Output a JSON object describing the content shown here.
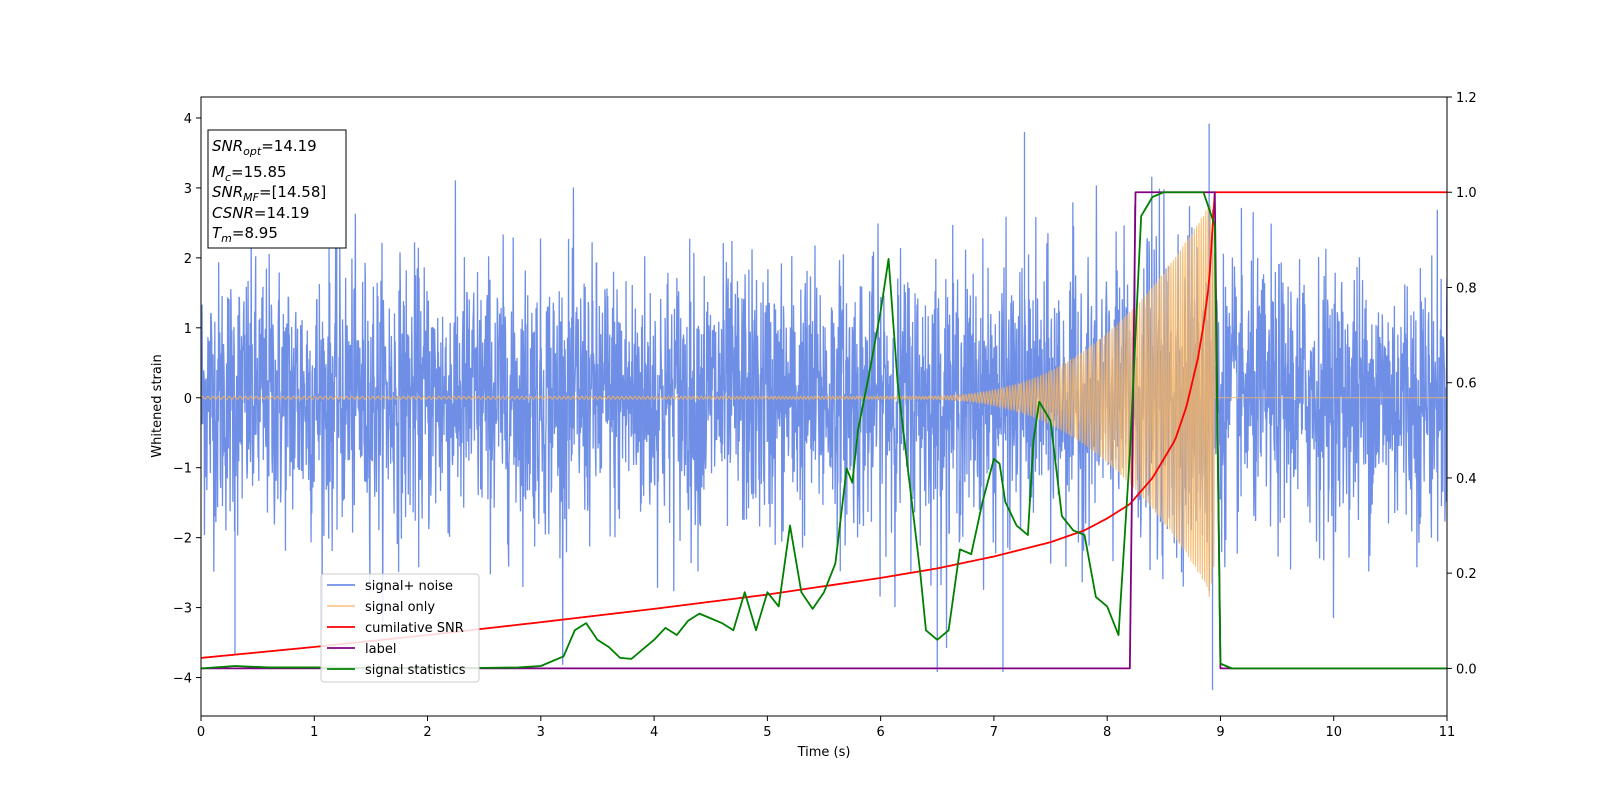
{
  "chart_data": {
    "type": "line",
    "xlabel": "Time (s)",
    "ylabel": "Whitened strain",
    "xlim": [
      0,
      11
    ],
    "ylim": [
      -4.55,
      4.3
    ],
    "y2lim": [
      -0.1,
      1.2
    ],
    "xticks": [
      0,
      1,
      2,
      3,
      4,
      5,
      6,
      7,
      8,
      9,
      10,
      11
    ],
    "yticks": [
      -4,
      -3,
      -2,
      -1,
      0,
      1,
      2,
      3,
      4
    ],
    "y2ticks": [
      "0.0",
      "0.2",
      "0.4",
      "0.6",
      "0.8",
      "1.0",
      "1.2"
    ],
    "grid": false,
    "legend_position": "lower-left",
    "annotations": [
      {
        "name": "snr-opt",
        "base": "SNR",
        "sub": "opt",
        "value": "=14.19"
      },
      {
        "name": "mc",
        "base": "M",
        "sub": "c",
        "value": "=15.85"
      },
      {
        "name": "snr-mf",
        "base": "SNR",
        "sub": "MF",
        "value": "=[14.58]"
      },
      {
        "name": "csnr",
        "base": "CSNR",
        "sub": "",
        "value": "=14.19"
      },
      {
        "name": "tm",
        "base": "T",
        "sub": "m",
        "value": "=8.95"
      }
    ],
    "series": [
      {
        "name": "signal+ noise",
        "color": "#6f8fe6",
        "axis": "left",
        "description_values": {
          "noise_std": 1.0,
          "t_start": 0,
          "t_end": 11,
          "spike_max": 3.92,
          "spike_min": -4.18
        }
      },
      {
        "name": "signal only",
        "color": "#f5b461",
        "axis": "left",
        "chirp": {
          "t_coalescence": 8.95,
          "amp_start": 0.02,
          "amp_peak": 2.9,
          "freq_start": 21,
          "freq_end": 60
        }
      },
      {
        "name": "cumilative SNR",
        "color": "#ff0000",
        "axis": "right",
        "x": [
          0,
          1,
          2,
          3,
          4,
          5,
          6,
          6.5,
          7,
          7.5,
          7.8,
          8.0,
          8.2,
          8.4,
          8.6,
          8.7,
          8.8,
          8.85,
          8.9,
          8.95,
          9,
          11
        ],
        "y": [
          0.022,
          0.045,
          0.07,
          0.097,
          0.125,
          0.155,
          0.19,
          0.21,
          0.235,
          0.265,
          0.29,
          0.315,
          0.345,
          0.4,
          0.48,
          0.55,
          0.65,
          0.72,
          0.81,
          1.0,
          1.0,
          1.0
        ]
      },
      {
        "name": "label",
        "color": "#800080",
        "axis": "right",
        "x": [
          0,
          8.2,
          8.25,
          8.95,
          9.0,
          11
        ],
        "y": [
          0,
          0,
          1,
          1,
          0,
          0
        ]
      },
      {
        "name": "signal statistics",
        "color": "#008000",
        "axis": "right",
        "x": [
          0,
          0.3,
          0.6,
          1.0,
          1.5,
          2.0,
          2.5,
          2.8,
          3.0,
          3.2,
          3.3,
          3.4,
          3.5,
          3.6,
          3.7,
          3.8,
          3.9,
          4.0,
          4.1,
          4.2,
          4.3,
          4.4,
          4.5,
          4.6,
          4.7,
          4.8,
          4.9,
          5.0,
          5.1,
          5.2,
          5.3,
          5.4,
          5.5,
          5.6,
          5.7,
          5.75,
          5.8,
          5.9,
          6.0,
          6.07,
          6.15,
          6.25,
          6.35,
          6.4,
          6.5,
          6.6,
          6.7,
          6.8,
          6.9,
          7.0,
          7.05,
          7.1,
          7.2,
          7.3,
          7.35,
          7.4,
          7.5,
          7.6,
          7.7,
          7.8,
          7.9,
          8.0,
          8.1,
          8.2,
          8.3,
          8.4,
          8.5,
          8.6,
          8.7,
          8.85,
          8.95,
          9.0,
          9.1,
          9.5,
          10,
          11
        ],
        "y": [
          0.0,
          0.005,
          0.002,
          0.002,
          0.001,
          0.001,
          0.001,
          0.002,
          0.005,
          0.025,
          0.08,
          0.095,
          0.06,
          0.045,
          0.022,
          0.02,
          0.04,
          0.06,
          0.085,
          0.07,
          0.1,
          0.115,
          0.105,
          0.095,
          0.08,
          0.16,
          0.08,
          0.16,
          0.13,
          0.3,
          0.16,
          0.125,
          0.16,
          0.22,
          0.42,
          0.39,
          0.5,
          0.62,
          0.75,
          0.86,
          0.6,
          0.4,
          0.2,
          0.08,
          0.06,
          0.08,
          0.25,
          0.24,
          0.35,
          0.44,
          0.43,
          0.35,
          0.3,
          0.28,
          0.48,
          0.56,
          0.52,
          0.32,
          0.29,
          0.28,
          0.15,
          0.13,
          0.07,
          0.45,
          0.95,
          0.99,
          1.0,
          1.0,
          1.0,
          1.0,
          0.93,
          0.01,
          0.0,
          0.0,
          0.0,
          0.0
        ]
      }
    ]
  }
}
